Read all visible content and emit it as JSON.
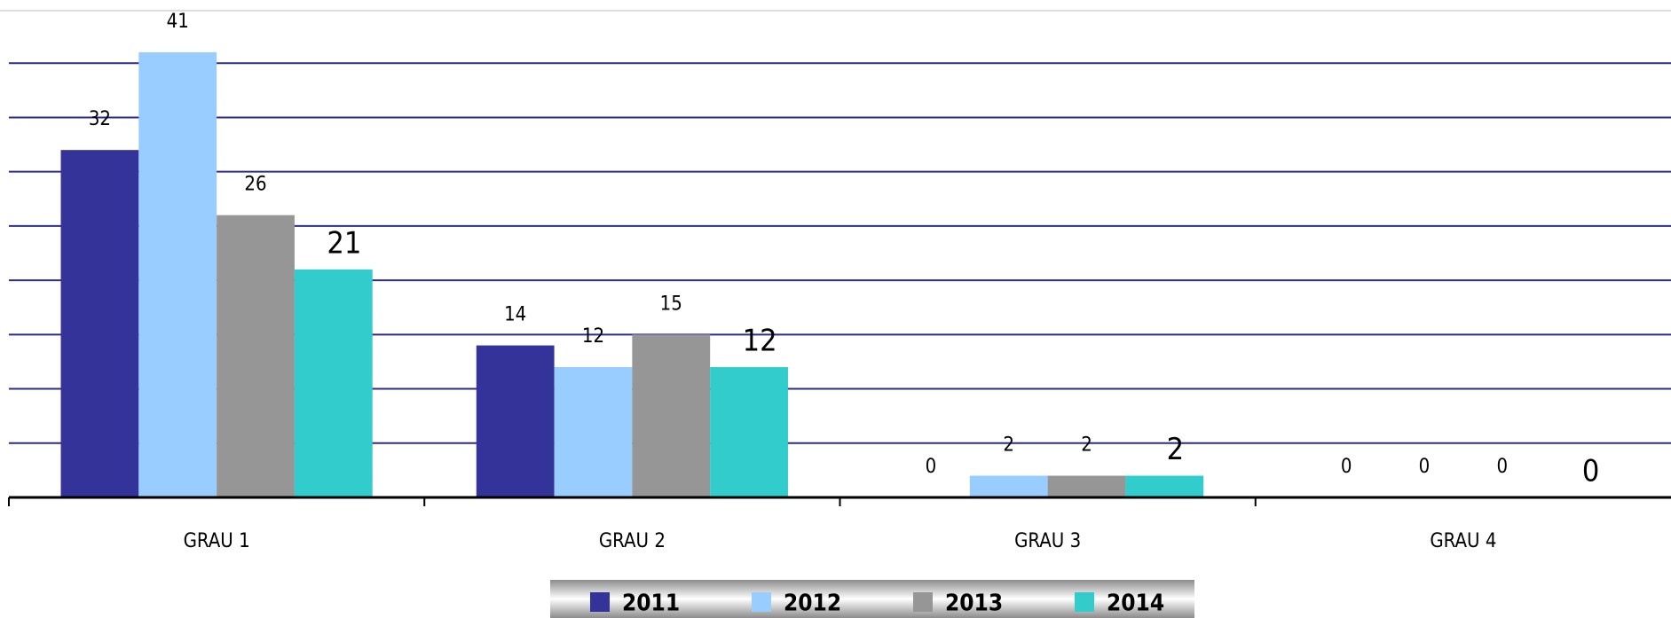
{
  "chart_data": {
    "type": "bar",
    "categories": [
      "GRAU 1",
      "GRAU 2",
      "GRAU 3",
      "GRAU 4"
    ],
    "series": [
      {
        "name": "2011",
        "color": "#333399",
        "values": [
          32,
          14,
          0,
          0
        ]
      },
      {
        "name": "2012",
        "color": "#99ccff",
        "values": [
          41,
          12,
          2,
          0
        ]
      },
      {
        "name": "2013",
        "color": "#969696",
        "values": [
          26,
          15,
          2,
          0
        ]
      },
      {
        "name": "2014",
        "color": "#33cccc",
        "values": [
          21,
          12,
          2,
          0
        ]
      }
    ],
    "ylim": [
      0,
      45
    ],
    "yticks": [
      0,
      5,
      10,
      15,
      20,
      25,
      30,
      35,
      40
    ],
    "grid": true,
    "legend": "bottom"
  }
}
